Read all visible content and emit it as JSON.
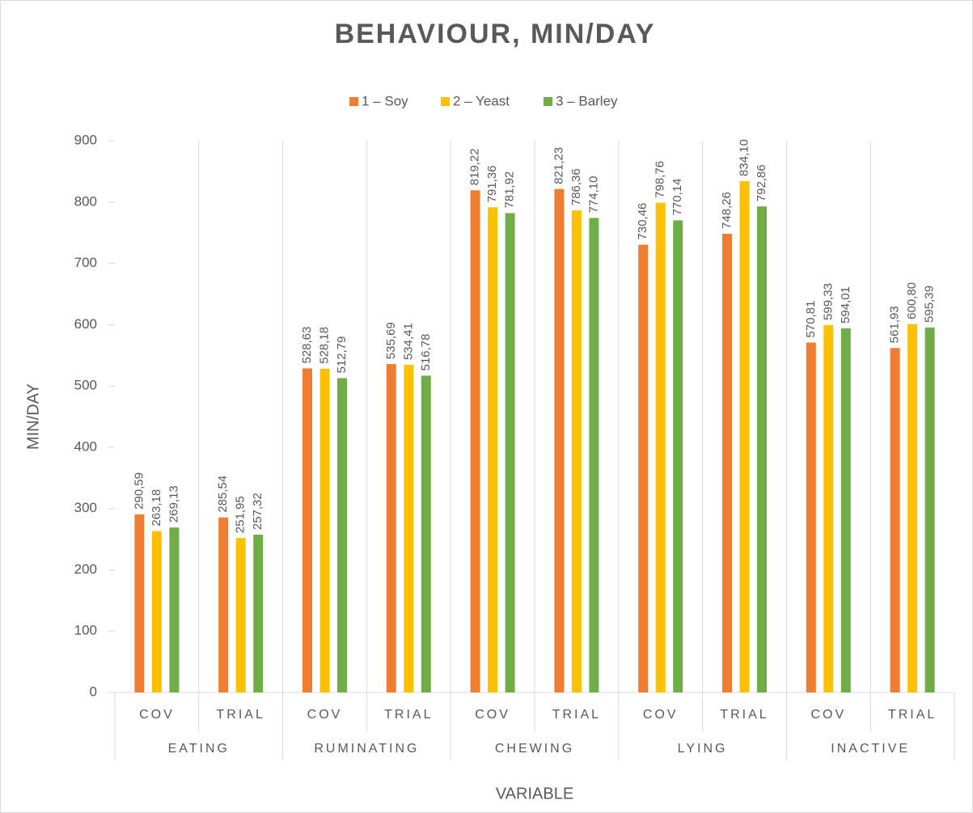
{
  "chart_data": {
    "type": "bar",
    "title": "BEHAVIOUR, MIN/DAY",
    "x_label": "VARIABLE",
    "y_label": "MIN/DAY",
    "categories": [
      "COV",
      "TRIAL",
      "COV",
      "TRIAL",
      "COV",
      "TRIAL",
      "COV",
      "TRIAL",
      "COV",
      "TRIAL"
    ],
    "groups": [
      "EATING",
      "RUMINATING",
      "CHEWING",
      "LYING",
      "INACTIVE"
    ],
    "series": [
      {
        "name": "1 – Soy",
        "color": "#ed7d31",
        "values": [
          290.59,
          285.54,
          528.63,
          535.69,
          819.22,
          821.23,
          730.46,
          748.26,
          570.81,
          561.93
        ],
        "value_labels": [
          "290,59",
          "285,54",
          "528,63",
          "535,69",
          "819,22",
          "821,23",
          "730,46",
          "748,26",
          "570,81",
          "561,93"
        ]
      },
      {
        "name": "2 – Yeast",
        "color": "#ffc000",
        "values": [
          263.18,
          251.95,
          528.18,
          534.41,
          791.36,
          786.36,
          798.76,
          834.1,
          599.33,
          600.8
        ],
        "value_labels": [
          "263,18",
          "251,95",
          "528,18",
          "534,41",
          "791,36",
          "786,36",
          "798,76",
          "834,10",
          "599,33",
          "600,80"
        ]
      },
      {
        "name": "3 – Barley",
        "color": "#70ad47",
        "values": [
          269.13,
          257.32,
          512.79,
          516.78,
          781.92,
          774.1,
          770.14,
          792.86,
          594.01,
          595.39
        ],
        "value_labels": [
          "269,13",
          "257,32",
          "512,79",
          "516,78",
          "781,92",
          "774,10",
          "770,14",
          "792,86",
          "594,01",
          "595,39"
        ]
      }
    ],
    "ylim": [
      0,
      900
    ],
    "yticks": [
      0,
      100,
      200,
      300,
      400,
      500,
      600,
      700,
      800,
      900
    ],
    "legend": "top",
    "grid": false
  }
}
